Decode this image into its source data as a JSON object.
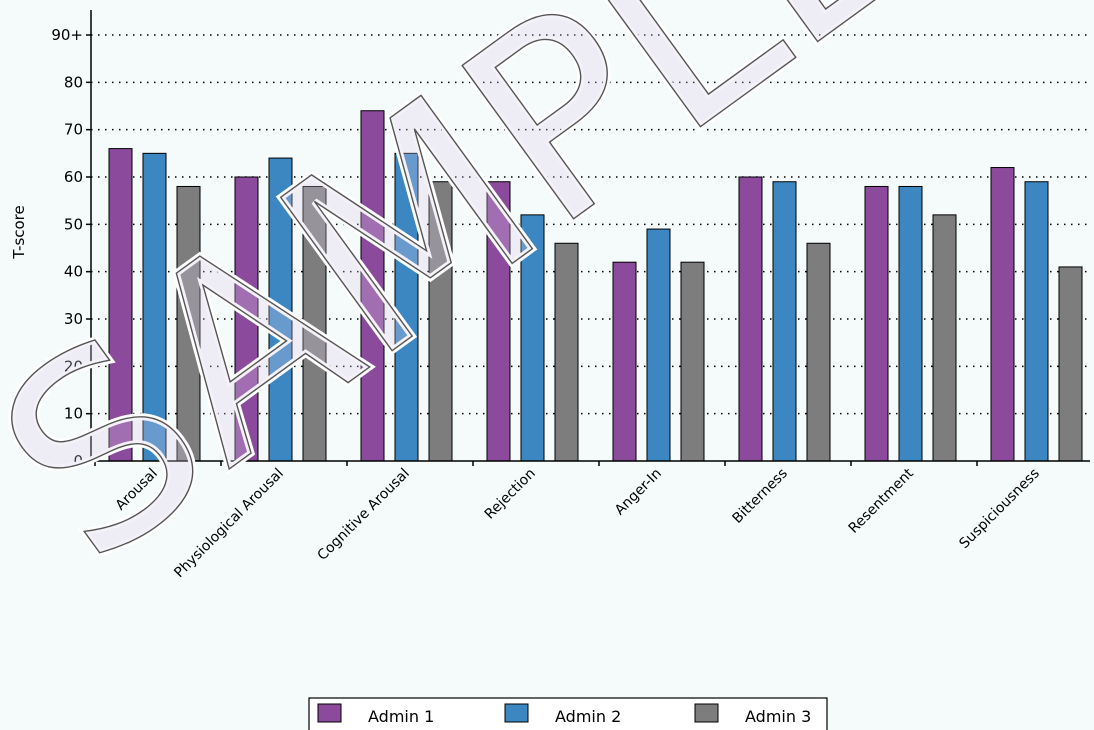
{
  "chart_data": {
    "type": "bar",
    "title": "",
    "xlabel": "",
    "ylabel": "T-score",
    "ylim": [
      0,
      95
    ],
    "y_ticks": [
      {
        "value": 0,
        "label": "0"
      },
      {
        "value": 10,
        "label": "10"
      },
      {
        "value": 20,
        "label": "20"
      },
      {
        "value": 30,
        "label": "30"
      },
      {
        "value": 40,
        "label": "40"
      },
      {
        "value": 50,
        "label": "50"
      },
      {
        "value": 60,
        "label": "60"
      },
      {
        "value": 70,
        "label": "70"
      },
      {
        "value": 80,
        "label": "80"
      },
      {
        "value": 90,
        "label": "90+"
      }
    ],
    "grid": true,
    "legend_position": "bottom",
    "categories": [
      "Arousal",
      "Physiological Arousal",
      "Cognitive Arousal",
      "Rejection",
      "Anger-In",
      "Bitterness",
      "Resentment",
      "Suspiciousness"
    ],
    "series": [
      {
        "name": "Admin 1",
        "color": "#8b4a9c",
        "values": [
          66,
          60,
          74,
          59,
          42,
          60,
          58,
          62
        ]
      },
      {
        "name": "Admin 2",
        "color": "#3c87c2",
        "values": [
          65,
          64,
          65,
          52,
          49,
          59,
          58,
          59
        ]
      },
      {
        "name": "Admin 3",
        "color": "#7d7d7d",
        "values": [
          58,
          58,
          59,
          46,
          42,
          46,
          52,
          41
        ]
      }
    ]
  },
  "watermark": "SAMPLE"
}
